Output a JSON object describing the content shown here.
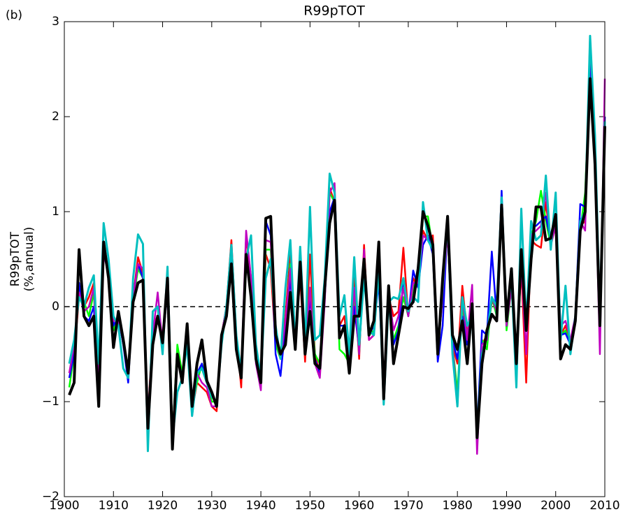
{
  "chart_data": {
    "type": "line",
    "title": "R99pTOT",
    "panel_label": "(b)",
    "ylabel": [
      "R99pTOT",
      "(%,annual)"
    ],
    "x": [
      1901,
      1902,
      1903,
      1904,
      1905,
      1906,
      1907,
      1908,
      1909,
      1910,
      1911,
      1912,
      1913,
      1914,
      1915,
      1916,
      1917,
      1918,
      1919,
      1920,
      1921,
      1922,
      1923,
      1924,
      1925,
      1926,
      1927,
      1928,
      1929,
      1930,
      1931,
      1932,
      1933,
      1934,
      1935,
      1936,
      1937,
      1938,
      1939,
      1940,
      1941,
      1942,
      1943,
      1944,
      1945,
      1946,
      1947,
      1948,
      1949,
      1950,
      1951,
      1952,
      1953,
      1954,
      1955,
      1956,
      1957,
      1958,
      1959,
      1960,
      1961,
      1962,
      1963,
      1964,
      1965,
      1966,
      1967,
      1968,
      1969,
      1970,
      1971,
      1972,
      1973,
      1974,
      1975,
      1976,
      1977,
      1978,
      1979,
      1980,
      1981,
      1982,
      1983,
      1984,
      1985,
      1986,
      1987,
      1988,
      1989,
      1990,
      1991,
      1992,
      1993,
      1994,
      1995,
      1996,
      1997,
      1998,
      1999,
      2000,
      2001,
      2002,
      2003,
      2004,
      2005,
      2006,
      2007,
      2008,
      2009,
      2010
    ],
    "series": [
      {
        "color": "#ff0000",
        "width": 2.5,
        "values": [
          -0.7,
          -0.5,
          0.1,
          0.0,
          0.1,
          0.25,
          -0.8,
          0.6,
          0.4,
          -0.2,
          -0.1,
          -0.4,
          -0.7,
          0.1,
          0.52,
          0.35,
          -1.2,
          -0.2,
          -0.1,
          -0.3,
          0.2,
          -1.3,
          -0.6,
          -0.7,
          -0.3,
          -1.1,
          -0.8,
          -0.85,
          -0.9,
          -1.05,
          -1.1,
          -0.3,
          0.0,
          0.7,
          -0.3,
          -0.85,
          0.75,
          0.3,
          -0.5,
          -0.85,
          0.55,
          0.4,
          -0.4,
          -0.5,
          -0.1,
          0.55,
          -0.35,
          0.3,
          -0.58,
          0.55,
          -0.5,
          -0.7,
          0.1,
          1.25,
          1.1,
          -0.2,
          -0.1,
          -0.6,
          0.3,
          -0.55,
          0.65,
          -0.35,
          -0.3,
          0.4,
          -0.85,
          0.1,
          -0.1,
          -0.05,
          0.62,
          -0.1,
          0.3,
          0.2,
          0.8,
          0.7,
          0.75,
          -0.45,
          0.1,
          0.8,
          -0.4,
          -0.6,
          0.22,
          -0.3,
          0.0,
          -1.3,
          -0.4,
          -0.3,
          0.05,
          0.0,
          1.0,
          -0.2,
          0.2,
          -0.5,
          0.4,
          -0.8,
          0.7,
          0.65,
          0.62,
          1.1,
          0.65,
          0.85,
          -0.3,
          -0.2,
          -0.4,
          -0.1,
          0.85,
          0.9,
          2.8,
          1.6,
          -0.3,
          2.0
        ]
      },
      {
        "color": "#00ff00",
        "width": 2.5,
        "values": [
          -0.85,
          -0.5,
          0.2,
          0.05,
          -0.1,
          0.15,
          -0.9,
          0.6,
          0.35,
          -0.25,
          -0.1,
          -0.4,
          -0.65,
          0.05,
          0.4,
          0.3,
          -1.25,
          -0.3,
          -0.1,
          -0.35,
          0.25,
          -1.4,
          -0.4,
          -0.7,
          -0.3,
          -1.05,
          -0.8,
          -0.6,
          -0.75,
          -1.0,
          -1.0,
          -0.3,
          0.0,
          0.55,
          -0.35,
          -0.75,
          0.55,
          0.2,
          -0.5,
          -0.8,
          0.6,
          0.6,
          -0.4,
          -0.55,
          -0.2,
          0.45,
          -0.4,
          0.4,
          -0.5,
          0.2,
          -0.5,
          -0.6,
          0.1,
          1.2,
          1.1,
          -0.45,
          -0.5,
          -0.6,
          0.1,
          -0.5,
          0.5,
          -0.3,
          -0.25,
          0.4,
          -0.9,
          0.15,
          -0.35,
          -0.2,
          0.1,
          -0.1,
          0.2,
          0.3,
          0.95,
          0.95,
          0.6,
          -0.5,
          0.2,
          0.85,
          -0.4,
          -0.9,
          0.0,
          -0.3,
          0.0,
          -1.35,
          -0.35,
          -0.45,
          0.1,
          -0.1,
          1.0,
          -0.25,
          0.2,
          -0.55,
          0.5,
          -0.25,
          0.75,
          0.9,
          1.22,
          0.9,
          0.65,
          0.9,
          -0.3,
          -0.25,
          -0.4,
          -0.1,
          0.8,
          1.2,
          2.5,
          1.5,
          -0.3,
          1.9
        ]
      },
      {
        "color": "#0000ff",
        "width": 2.5,
        "values": [
          -0.75,
          -0.5,
          0.25,
          -0.1,
          -0.15,
          0.0,
          -0.9,
          0.6,
          0.35,
          -0.2,
          -0.1,
          -0.4,
          -0.8,
          0.1,
          0.45,
          0.3,
          -1.2,
          -0.3,
          -0.1,
          -0.4,
          0.2,
          -1.45,
          -0.5,
          -0.75,
          -0.3,
          -1.15,
          -0.7,
          -0.6,
          -0.8,
          -0.95,
          -1.0,
          -0.35,
          0.0,
          0.6,
          -0.4,
          -0.7,
          0.5,
          0.25,
          -0.5,
          -0.85,
          0.9,
          0.75,
          -0.5,
          -0.73,
          -0.2,
          0.3,
          -0.45,
          0.5,
          -0.5,
          0.1,
          -0.55,
          -0.7,
          0.1,
          1.0,
          1.15,
          -0.2,
          -0.2,
          -0.65,
          0.0,
          -0.45,
          0.4,
          -0.3,
          -0.2,
          0.25,
          -0.9,
          0.1,
          -0.4,
          -0.25,
          0.25,
          -0.1,
          0.38,
          0.2,
          0.65,
          0.75,
          0.55,
          -0.58,
          -0.2,
          0.9,
          -0.35,
          -0.55,
          -0.1,
          -0.4,
          0.0,
          -1.3,
          -0.25,
          -0.3,
          0.58,
          -0.1,
          1.22,
          -0.2,
          0.3,
          -0.6,
          0.5,
          -0.2,
          0.85,
          0.85,
          0.9,
          0.95,
          0.7,
          0.95,
          -0.3,
          -0.28,
          -0.4,
          -0.1,
          1.08,
          1.05,
          2.6,
          1.5,
          -0.2,
          2.0
        ]
      },
      {
        "color": "#bf00bf",
        "width": 2.5,
        "values": [
          -0.7,
          -0.4,
          0.15,
          -0.05,
          0.0,
          0.2,
          -0.8,
          0.55,
          0.35,
          -0.15,
          -0.15,
          -0.35,
          -0.7,
          0.1,
          0.45,
          0.4,
          -1.2,
          -0.3,
          0.15,
          -0.4,
          0.25,
          -1.45,
          -0.55,
          -0.75,
          -0.25,
          -1.1,
          -0.7,
          -0.8,
          -0.85,
          -1.05,
          -1.05,
          -0.3,
          0.0,
          0.65,
          -0.35,
          -0.7,
          0.8,
          0.3,
          -0.6,
          -0.88,
          0.7,
          0.68,
          -0.3,
          -0.55,
          -0.15,
          0.4,
          -0.4,
          0.45,
          -0.5,
          0.2,
          -0.6,
          -0.75,
          0.05,
          1.2,
          1.3,
          -0.3,
          -0.2,
          -0.6,
          0.2,
          -0.5,
          0.6,
          -0.35,
          -0.3,
          0.45,
          -0.9,
          0.15,
          -0.25,
          -0.1,
          0.2,
          -0.1,
          0.25,
          0.25,
          0.75,
          0.7,
          0.6,
          -0.5,
          0.15,
          0.8,
          -0.4,
          -1.05,
          0.1,
          -0.35,
          0.23,
          -1.55,
          -0.4,
          -0.35,
          0.1,
          -0.05,
          1.1,
          -0.2,
          0.2,
          -0.55,
          0.45,
          -0.5,
          0.75,
          0.8,
          0.85,
          1.2,
          0.65,
          0.85,
          -0.2,
          -0.15,
          -0.35,
          -0.1,
          0.9,
          0.8,
          2.85,
          1.5,
          -0.5,
          2.4
        ]
      },
      {
        "color": "#00bfbf",
        "width": 3,
        "values": [
          -0.6,
          -0.35,
          0.1,
          0.0,
          0.2,
          0.33,
          -0.6,
          0.88,
          0.5,
          -0.1,
          -0.2,
          -0.65,
          -0.75,
          0.3,
          0.76,
          0.66,
          -1.52,
          -0.05,
          0.0,
          -0.5,
          0.42,
          -1.4,
          -0.9,
          -0.75,
          -0.4,
          -1.15,
          -0.7,
          -0.65,
          -0.8,
          -0.95,
          -1.0,
          -0.4,
          0.0,
          0.65,
          -0.3,
          -0.7,
          0.5,
          0.75,
          -0.4,
          -0.75,
          0.3,
          0.5,
          -0.2,
          -0.55,
          0.2,
          0.7,
          -0.4,
          0.63,
          -0.4,
          1.05,
          -0.35,
          -0.3,
          0.3,
          1.4,
          1.2,
          -0.1,
          0.12,
          -0.5,
          0.52,
          -0.4,
          0.3,
          -0.25,
          -0.3,
          0.4,
          -1.03,
          0.05,
          0.1,
          0.08,
          0.3,
          -0.05,
          0.1,
          0.05,
          1.1,
          0.7,
          0.6,
          -0.5,
          0.2,
          0.9,
          -0.5,
          -1.05,
          0.1,
          -0.2,
          -0.1,
          -1.3,
          -0.5,
          -0.3,
          0.1,
          0.0,
          1.15,
          -0.1,
          0.3,
          -0.85,
          1.03,
          -0.2,
          0.9,
          0.7,
          0.75,
          1.38,
          0.6,
          1.2,
          -0.35,
          0.22,
          -0.5,
          -0.1,
          0.9,
          1.0,
          2.85,
          1.8,
          -0.1,
          1.95
        ]
      },
      {
        "color": "#000000",
        "width": 4,
        "values": [
          -0.93,
          -0.8,
          0.6,
          -0.1,
          -0.2,
          -0.1,
          -1.05,
          0.68,
          0.3,
          -0.43,
          -0.05,
          -0.35,
          -0.7,
          0.05,
          0.25,
          0.28,
          -1.28,
          -0.4,
          -0.1,
          -0.38,
          0.3,
          -1.5,
          -0.5,
          -0.8,
          -0.18,
          -1.05,
          -0.6,
          -0.35,
          -0.78,
          -0.9,
          -1.05,
          -0.3,
          -0.1,
          0.45,
          -0.45,
          -0.75,
          0.55,
          0.1,
          -0.55,
          -0.8,
          0.93,
          0.95,
          -0.3,
          -0.5,
          -0.4,
          0.15,
          -0.45,
          0.47,
          -0.5,
          -0.05,
          -0.6,
          -0.65,
          0.2,
          0.88,
          1.12,
          -0.33,
          -0.2,
          -0.7,
          -0.1,
          -0.1,
          0.5,
          -0.3,
          -0.15,
          0.68,
          -0.97,
          0.22,
          -0.6,
          -0.3,
          0.0,
          -0.02,
          0.05,
          0.4,
          1.0,
          0.85,
          0.65,
          -0.5,
          0.3,
          0.95,
          -0.3,
          -0.45,
          -0.15,
          -0.6,
          0.03,
          -1.38,
          -0.6,
          -0.25,
          -0.08,
          -0.15,
          1.07,
          -0.15,
          0.4,
          -0.6,
          0.6,
          -0.25,
          0.5,
          1.05,
          1.05,
          0.7,
          0.72,
          0.97,
          -0.55,
          -0.4,
          -0.45,
          -0.15,
          0.8,
          1.0,
          2.4,
          1.5,
          -0.2,
          1.9
        ]
      }
    ],
    "xlim": [
      1900,
      2010
    ],
    "xticks": [
      1900,
      1910,
      1920,
      1930,
      1940,
      1950,
      1960,
      1970,
      1980,
      1990,
      2000,
      2010
    ],
    "ylim": [
      -2,
      3
    ],
    "yticks": [
      {
        "value": -2,
        "label": "−2"
      },
      {
        "value": -1,
        "label": "−1"
      },
      0,
      1,
      2,
      3
    ],
    "hline": 0,
    "grid": false
  }
}
